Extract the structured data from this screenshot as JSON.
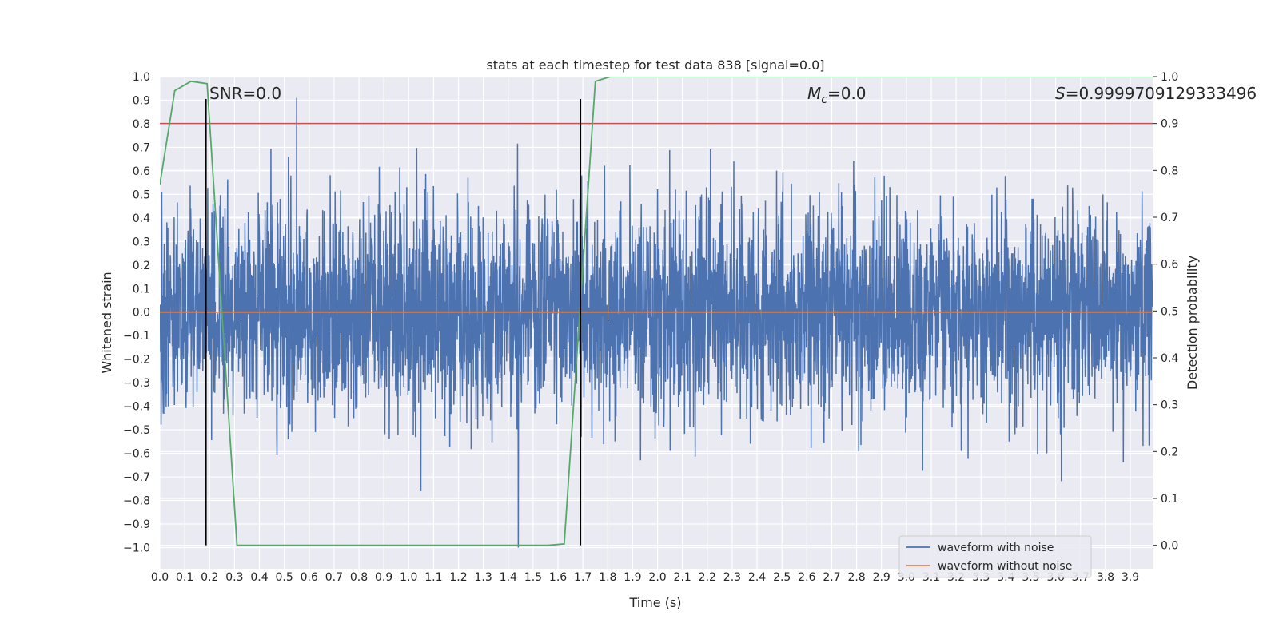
{
  "chart_data": {
    "type": "line",
    "title": "stats at each timestep for test data 838 [signal=0.0]",
    "xlabel": "Time (s)",
    "ylabel": "Whitened strain",
    "y2label": "Detection probability",
    "xlim": [
      0.0,
      3.99
    ],
    "ylim": [
      -1.09,
      1.0
    ],
    "y2lim": [
      -0.05,
      1.0
    ],
    "xticks": [
      "0.0",
      "0.1",
      "0.2",
      "0.3",
      "0.4",
      "0.5",
      "0.6",
      "0.7",
      "0.8",
      "0.9",
      "1.0",
      "1.1",
      "1.2",
      "1.3",
      "1.4",
      "1.5",
      "1.6",
      "1.7",
      "1.8",
      "1.9",
      "2.0",
      "2.1",
      "2.2",
      "2.3",
      "2.4",
      "2.5",
      "2.6",
      "2.7",
      "2.8",
      "2.9",
      "3.0",
      "3.1",
      "3.2",
      "3.3",
      "3.4",
      "3.5",
      "3.6",
      "3.7",
      "3.8",
      "3.9"
    ],
    "yticks": [
      "1.0",
      "0.9",
      "0.8",
      "0.7",
      "0.6",
      "0.5",
      "0.4",
      "0.3",
      "0.2",
      "0.1",
      "0.0",
      "−0.1",
      "−0.2",
      "−0.3",
      "−0.4",
      "−0.5",
      "−0.6",
      "−0.7",
      "−0.8",
      "−0.9",
      "−1.0"
    ],
    "y2ticks": [
      "1.0",
      "0.9",
      "0.8",
      "0.7",
      "0.6",
      "0.5",
      "0.4",
      "0.3",
      "0.2",
      "0.1",
      "0.0"
    ],
    "grid": true,
    "legend_position": "lower-right",
    "series": [
      {
        "name": "waveform with noise",
        "axis": "left",
        "color": "#4c72b0",
        "kind": "noise",
        "duration": 3.99,
        "sample_rate": 1024,
        "approx_std": 0.22,
        "peak_max": 0.91,
        "peak_min": -1.0
      },
      {
        "name": "waveform without noise",
        "axis": "left",
        "color": "#dd8452",
        "x": [
          0.0,
          3.99
        ],
        "y": [
          0.0,
          0.0
        ]
      },
      {
        "name": "detection probability",
        "axis": "right",
        "color": "#55a868",
        "x": [
          0.0,
          0.06,
          0.125,
          0.19,
          0.31,
          1.56,
          1.625,
          1.75,
          1.81,
          3.99
        ],
        "y": [
          0.77,
          0.97,
          0.99,
          0.985,
          0.0,
          0.0,
          0.003,
          0.99,
          1.0,
          1.0
        ]
      }
    ],
    "threshold": {
      "axis": "right",
      "value": 0.9,
      "color": "#c44e52"
    },
    "vlines": [
      0.185,
      1.69
    ],
    "annotations": {
      "snr": "SNR=0.0",
      "mc_symbol": "M",
      "mc_subscript": "c",
      "mc_value": "=0.0",
      "s_symbol": "S",
      "s_value": "=0.9999709129333496"
    }
  }
}
